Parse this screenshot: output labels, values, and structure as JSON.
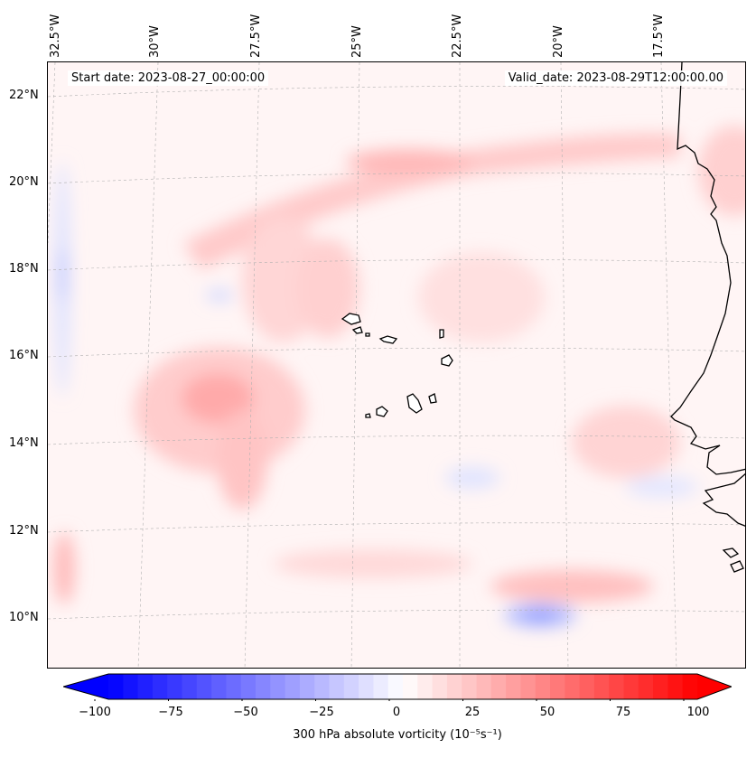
{
  "map": {
    "start_date": "Start date: 2023-08-27_00:00:00",
    "valid_date": "Valid_date: 2023-08-29T12:00:00.00",
    "longitude_labels": [
      "32.5°W",
      "30°W",
      "27.5°W",
      "25°W",
      "22.5°W",
      "20°W",
      "17.5°W"
    ],
    "latitude_labels": [
      "22°N",
      "20°N",
      "18°N",
      "16°N",
      "14°N",
      "12°N",
      "10°N"
    ],
    "field": "300 hPa absolute vorticity",
    "colors": {
      "positive": "#ff0000",
      "negative": "#0000ff",
      "neutral": "#ffffff",
      "coast": "#000000",
      "grid": "#b0b0b0"
    },
    "vorticity_features": [
      {
        "name": "tropical wave vortex",
        "lon": -27.8,
        "lat": 15.0,
        "value": 28
      },
      {
        "name": "northern jet band",
        "lon": -22.0,
        "lat": 20.6,
        "value": 20
      },
      {
        "name": "southern band",
        "lon": -20.5,
        "lat": 10.5,
        "value": 18
      },
      {
        "name": "negative pocket",
        "lon": -21.0,
        "lat": 9.9,
        "value": -35
      }
    ]
  },
  "colorbar": {
    "label": "300 hPa absolute vorticity (10⁻⁵s⁻¹)",
    "min": -100,
    "max": 100,
    "ticks": [
      "−100",
      "−75",
      "−50",
      "−25",
      "0",
      "25",
      "50",
      "75",
      "100"
    ],
    "tick_values": [
      -100,
      -75,
      -50,
      -25,
      0,
      25,
      50,
      75,
      100
    ],
    "cmap": "bwr"
  }
}
